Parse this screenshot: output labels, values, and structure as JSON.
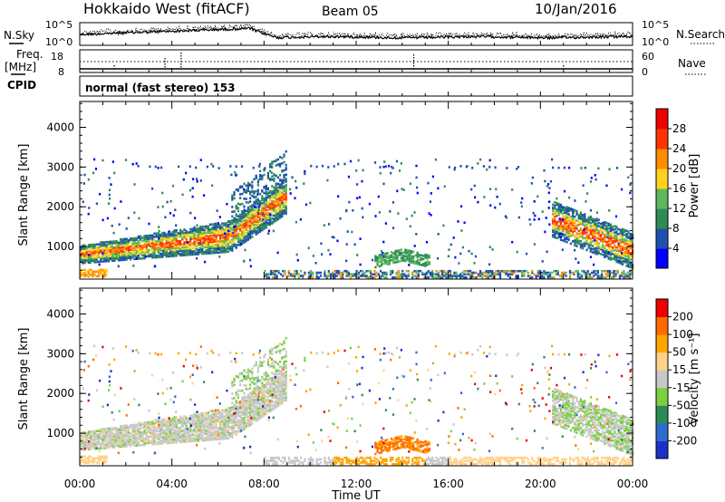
{
  "header": {
    "station": "Hokkaido West (fitACF)",
    "beam": "Beam 05",
    "date": "10/Jan/2016"
  },
  "small_panels": {
    "nsky_label": "N.Sky",
    "nsky_ticks": [
      "10^5",
      "10^0"
    ],
    "nsearch_ticks": [
      "10^5",
      "10^0"
    ],
    "nsearch_label": "N.Search",
    "freq_label": "Freq.",
    "freq_unit": "[MHz]",
    "freq_ticks": [
      "18",
      "8"
    ],
    "nave_ticks": [
      "60",
      "0"
    ],
    "nave_label": "Nave",
    "cpid_label": "CPID",
    "cpid_text": "normal (fast stereo) 153"
  },
  "colors": {
    "power": [
      "#0000ff",
      "#1f4fb0",
      "#2e8b57",
      "#5cb85c",
      "#ffd21f",
      "#ff8c00",
      "#ff3300",
      "#ee0000"
    ],
    "velocity": [
      "#1e2fc8",
      "#2f6bd0",
      "#2e8b57",
      "#7cd040",
      "#c8c8c8",
      "#ffd28a",
      "#ffa500",
      "#ff6a00",
      "#ee0000"
    ]
  },
  "chart_data": [
    {
      "type": "heatmap",
      "name": "power",
      "ylabel": "Slant Range [km]",
      "ylim": [
        180,
        4650
      ],
      "yticks": [
        "4000",
        "3000",
        "2000",
        "1000"
      ],
      "xlim": [
        0,
        24
      ],
      "xticks": [
        "00:00",
        "04:00",
        "08:00",
        "12:00",
        "16:00",
        "20:00",
        "00:00"
      ],
      "colorbar_label": "Power [dB]",
      "colorbar_ticks": [
        "28",
        "24",
        "20",
        "16",
        "12",
        "8",
        "4"
      ]
    },
    {
      "type": "heatmap",
      "name": "velocity",
      "ylabel": "Slant Range [km]",
      "ylim": [
        180,
        4650
      ],
      "yticks": [
        "4000",
        "3000",
        "2000",
        "1000"
      ],
      "xlim": [
        0,
        24
      ],
      "xticks": [
        "00:00",
        "04:00",
        "08:00",
        "12:00",
        "16:00",
        "20:00",
        "00:00"
      ],
      "xlabel": "Time UT",
      "colorbar_label": "Velocity [m s⁻¹]",
      "colorbar_ticks": [
        "200",
        "100",
        "50",
        "15",
        "-15",
        "-50",
        "-100",
        "-200"
      ]
    }
  ]
}
